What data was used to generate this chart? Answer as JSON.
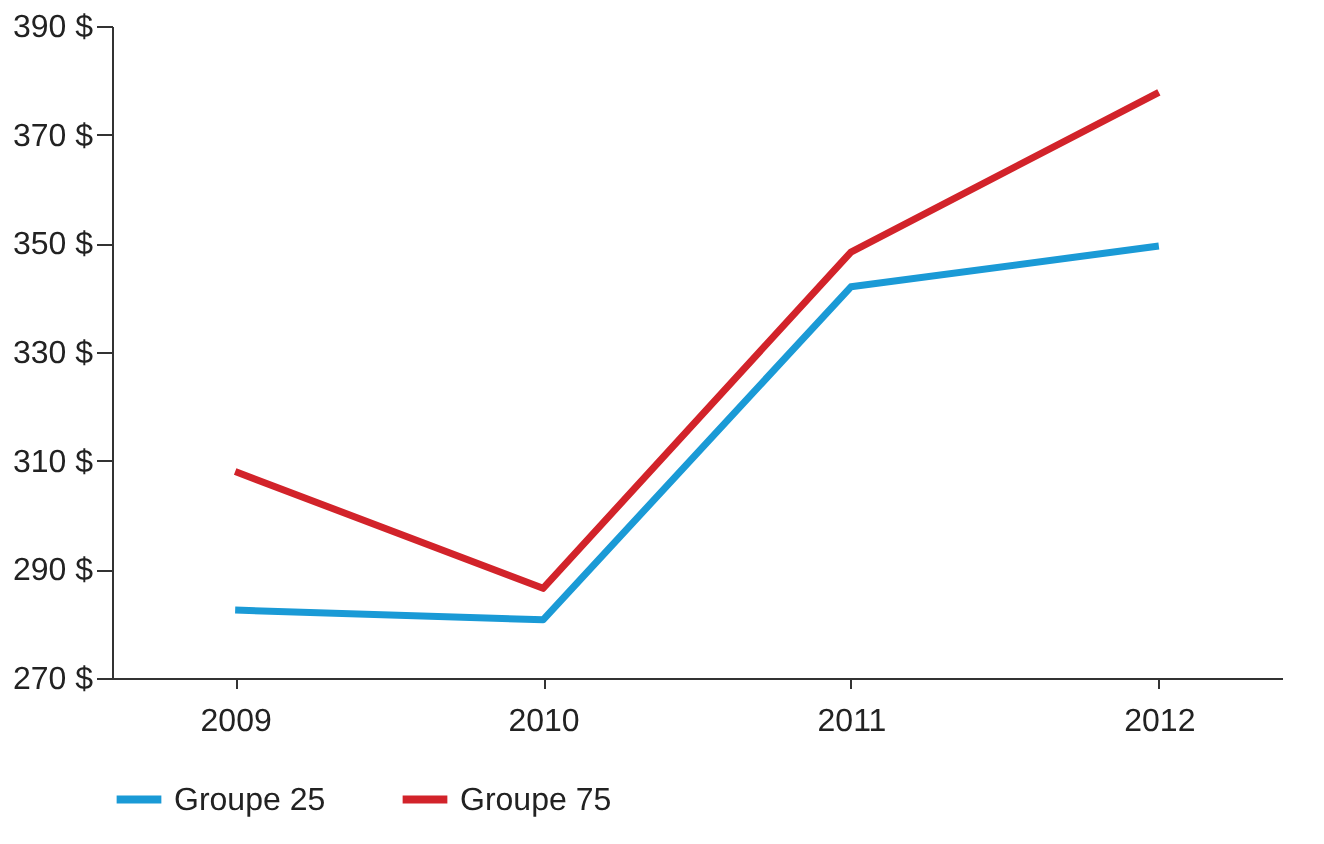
{
  "chart_data": {
    "type": "line",
    "categories": [
      "2009",
      "2010",
      "2011",
      "2012"
    ],
    "series": [
      {
        "name": "Groupe 25",
        "color": "#1a9ad6",
        "values": [
          282.5,
          280.7,
          342,
          349.5
        ]
      },
      {
        "name": "Groupe 75",
        "color": "#d2232a",
        "values": [
          308,
          286.5,
          348.4,
          377.8
        ]
      }
    ],
    "ylim": [
      270,
      390
    ],
    "yticks": [
      {
        "value": 270,
        "label": "270 $"
      },
      {
        "value": 290,
        "label": "290 $"
      },
      {
        "value": 310,
        "label": "310 $"
      },
      {
        "value": 330,
        "label": "330 $"
      },
      {
        "value": 350,
        "label": "350 $"
      },
      {
        "value": 370,
        "label": "370 $"
      },
      {
        "value": 390,
        "label": "390 $"
      }
    ],
    "grid": false,
    "legend": "bottom",
    "marker": "none",
    "line_style": "solid"
  }
}
